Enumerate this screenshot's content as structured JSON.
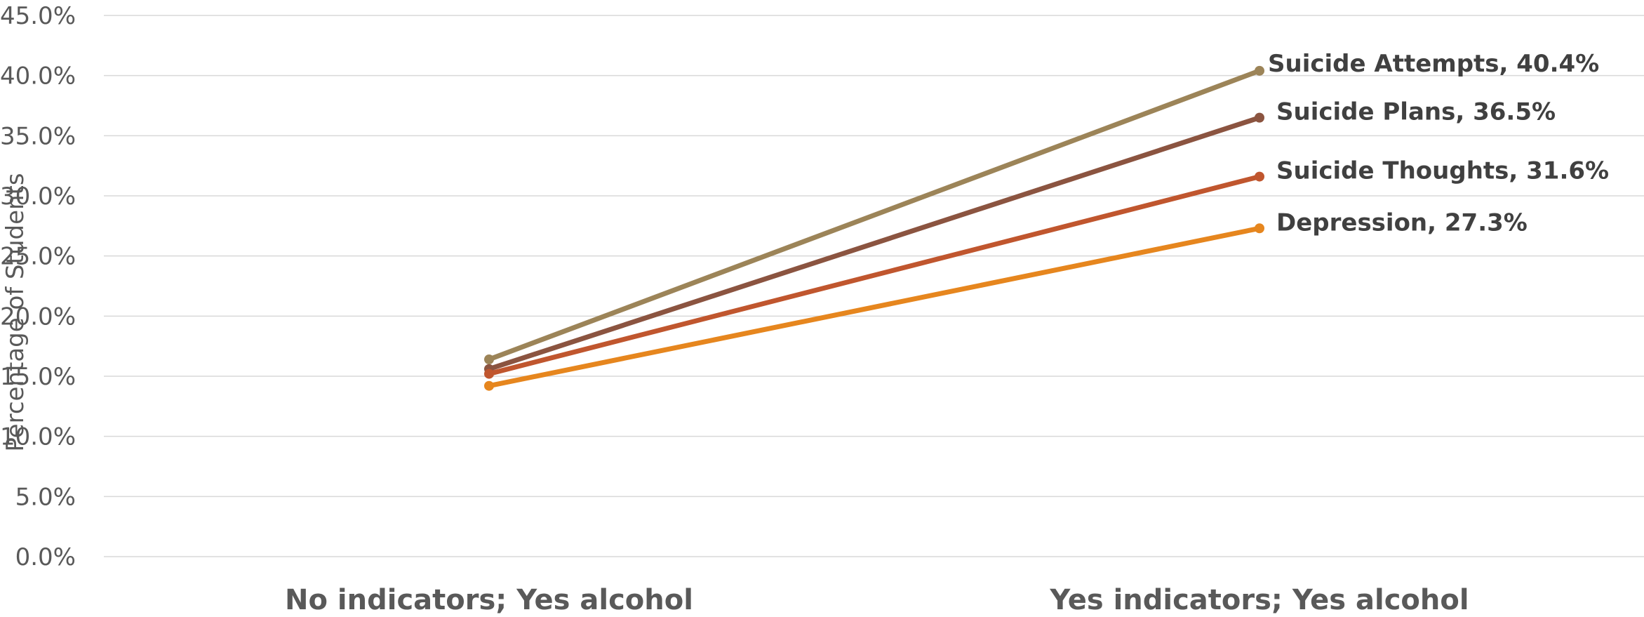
{
  "chart_data": {
    "type": "line",
    "categories": [
      "No indicators; Yes alcohol",
      "Yes indicators; Yes alcohol"
    ],
    "ylabel": "Percentage of Students",
    "ylim": [
      0,
      45
    ],
    "yticks": [
      "0.0%",
      "5.0%",
      "10.0%",
      "15.0%",
      "20.0%",
      "25.0%",
      "30.0%",
      "35.0%",
      "40.0%",
      "45.0%"
    ],
    "grid": true,
    "series": [
      {
        "name": "Suicide Attempts",
        "values": [
          16.4,
          40.4
        ],
        "color": "#9C8458",
        "label": "Suicide Attempts, 40.4%"
      },
      {
        "name": "Suicide Plans",
        "values": [
          15.6,
          36.5
        ],
        "color": "#8B5440",
        "label": "Suicide Plans, 36.5%"
      },
      {
        "name": "Suicide Thoughts",
        "values": [
          15.2,
          31.6
        ],
        "color": "#C0562E",
        "label": "Suicide Thoughts, 31.6%"
      },
      {
        "name": "Depression",
        "values": [
          14.2,
          27.3
        ],
        "color": "#E6861E",
        "label": "Depression, 27.3%"
      }
    ]
  }
}
